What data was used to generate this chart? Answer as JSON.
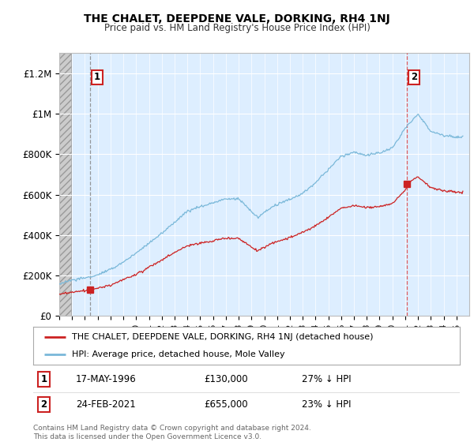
{
  "title": "THE CHALET, DEEPDENE VALE, DORKING, RH4 1NJ",
  "subtitle": "Price paid vs. HM Land Registry's House Price Index (HPI)",
  "legend_line1": "THE CHALET, DEEPDENE VALE, DORKING, RH4 1NJ (detached house)",
  "legend_line2": "HPI: Average price, detached house, Mole Valley",
  "transaction1_date": "17-MAY-1996",
  "transaction1_price": 130000,
  "transaction1_note": "27% ↓ HPI",
  "transaction2_date": "24-FEB-2021",
  "transaction2_price": 655000,
  "transaction2_note": "23% ↓ HPI",
  "footer": "Contains HM Land Registry data © Crown copyright and database right 2024.\nThis data is licensed under the Open Government Licence v3.0.",
  "hpi_color": "#7ab8d9",
  "price_color": "#cc2222",
  "dashed1_color": "#888888",
  "dashed2_color": "#dd4444",
  "plot_bg_color": "#ddeeff",
  "ylim_max": 1300000,
  "year_start": 1994,
  "year_end": 2026,
  "t1_year": 1996.38,
  "t2_year": 2021.12,
  "t1_price": 130000,
  "t2_price": 655000
}
